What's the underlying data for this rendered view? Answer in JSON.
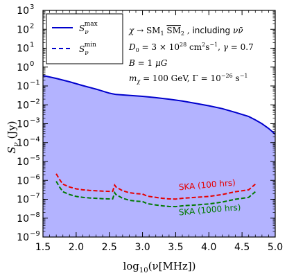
{
  "chart_data": {
    "type": "area",
    "xlabel": "log10(ν[MHz])",
    "ylabel": "Sν (Jy)",
    "xlim": [
      1.5,
      5.0
    ],
    "ylim_log10": [
      -9,
      3
    ],
    "y_scale": "log",
    "x_ticks": [
      "1.5",
      "2.0",
      "2.5",
      "3.0",
      "3.5",
      "4.0",
      "4.5",
      "5.0"
    ],
    "y_ticks": [
      "10-9",
      "10-8",
      "10-7",
      "10-6",
      "10-5",
      "10-4",
      "10-3",
      "10-2",
      "10-1",
      "100",
      "101",
      "102",
      "103"
    ],
    "legend": {
      "placement": "top-left",
      "entries": [
        {
          "label": "Sν max",
          "style": "solid",
          "color": "#0000cc"
        },
        {
          "label": "Sν min",
          "style": "dashed",
          "color": "#0000cc"
        }
      ]
    },
    "annotations": [
      "χ → SM1 SM2 , including νν̄",
      "D0 = 3 × 10^28 cm^2 s^-1 , γ = 0.7",
      "B = 1 μG",
      "mχ = 100 GeV, Γ = 10^-26 s^-1"
    ],
    "series": [
      {
        "name": "Sν max",
        "color": "#0000cc",
        "fill": "#b3b3ff",
        "x": [
          1.5,
          1.7,
          1.9,
          2.1,
          2.3,
          2.5,
          2.55,
          2.6,
          2.8,
          3.0,
          3.2,
          3.4,
          3.6,
          3.8,
          4.0,
          4.2,
          4.4,
          4.6,
          4.7,
          4.8,
          4.9,
          5.0
        ],
        "y_log10": [
          -0.45,
          -0.6,
          -0.78,
          -0.98,
          -1.17,
          -1.38,
          -1.42,
          -1.45,
          -1.5,
          -1.55,
          -1.62,
          -1.7,
          -1.8,
          -1.92,
          -2.05,
          -2.2,
          -2.4,
          -2.62,
          -2.8,
          -3.0,
          -3.25,
          -3.55
        ]
      },
      {
        "name": "SKA (100 hrs)",
        "color": "#e60000",
        "style": "dashed",
        "x": [
          1.7,
          1.75,
          1.8,
          1.9,
          2.0,
          2.1,
          2.2,
          2.3,
          2.4,
          2.5,
          2.55,
          2.58,
          2.6,
          2.65,
          2.7,
          2.8,
          2.9,
          3.0,
          3.05,
          3.1,
          3.2,
          3.3,
          3.4,
          3.5,
          3.6,
          3.8,
          4.0,
          4.2,
          4.4,
          4.6,
          4.7
        ],
        "y_log10": [
          -5.65,
          -5.95,
          -6.2,
          -6.35,
          -6.45,
          -6.5,
          -6.53,
          -6.55,
          -6.57,
          -6.58,
          -6.58,
          -6.25,
          -6.35,
          -6.45,
          -6.55,
          -6.65,
          -6.7,
          -6.72,
          -6.8,
          -6.85,
          -6.9,
          -6.95,
          -6.98,
          -6.99,
          -6.95,
          -6.9,
          -6.85,
          -6.75,
          -6.6,
          -6.5,
          -6.2
        ]
      },
      {
        "name": "SKA (1000 hrs)",
        "color": "#007a00",
        "style": "dashed",
        "x": [
          1.7,
          1.75,
          1.8,
          1.9,
          2.0,
          2.1,
          2.2,
          2.3,
          2.4,
          2.5,
          2.55,
          2.58,
          2.6,
          2.65,
          2.7,
          2.8,
          2.9,
          3.0,
          3.05,
          3.1,
          3.2,
          3.3,
          3.4,
          3.5,
          3.6,
          3.8,
          4.0,
          4.2,
          4.4,
          4.6,
          4.7
        ],
        "y_log10": [
          -6.05,
          -6.35,
          -6.6,
          -6.75,
          -6.85,
          -6.9,
          -6.93,
          -6.95,
          -6.97,
          -6.98,
          -6.98,
          -6.65,
          -6.75,
          -6.85,
          -6.95,
          -7.05,
          -7.1,
          -7.12,
          -7.2,
          -7.25,
          -7.3,
          -7.35,
          -7.38,
          -7.39,
          -7.35,
          -7.3,
          -7.25,
          -7.15,
          -7.0,
          -6.9,
          -6.6
        ]
      }
    ],
    "series_labels": [
      {
        "text": "SKA (100 hrs)",
        "color": "#e60000",
        "x": 3.55,
        "y_log10": -6.52
      },
      {
        "text": "SKA (1000 hrs)",
        "color": "#007a00",
        "x": 3.55,
        "y_log10": -7.85
      }
    ]
  }
}
